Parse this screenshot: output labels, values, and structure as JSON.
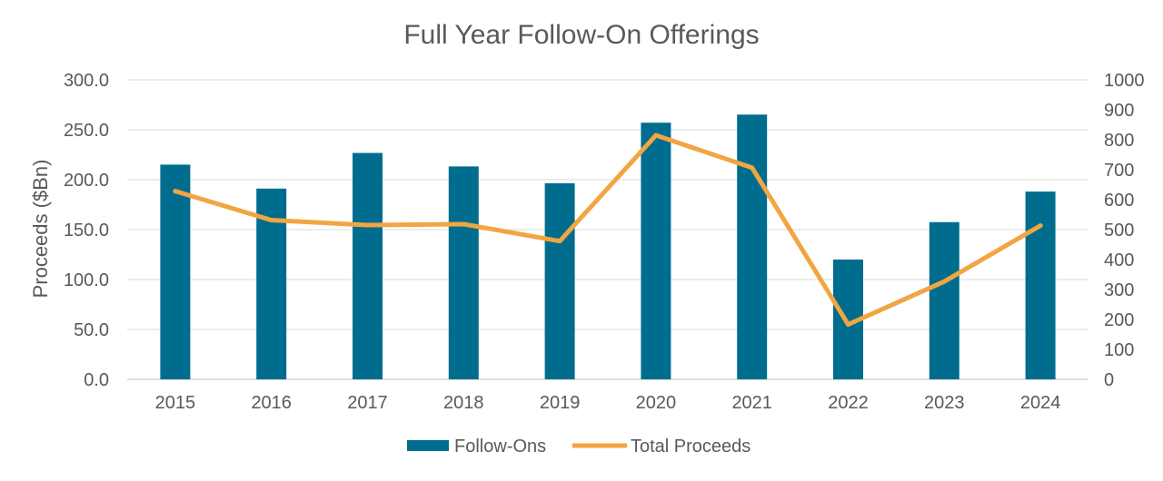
{
  "chart_data": {
    "type": "bar",
    "title": "Full Year Follow-On Offerings",
    "xlabel": "",
    "ylabel": "Proceeds ($Bn)",
    "y2label": "",
    "categories": [
      "2015",
      "2016",
      "2017",
      "2018",
      "2019",
      "2020",
      "2021",
      "2022",
      "2023",
      "2024"
    ],
    "ylim": [
      0,
      300
    ],
    "y2lim": [
      0,
      1000
    ],
    "yticks": [
      "0.0",
      "50.0",
      "100.0",
      "150.0",
      "200.0",
      "250.0",
      "300.0"
    ],
    "y2ticks": [
      "0",
      "100",
      "200",
      "300",
      "400",
      "500",
      "600",
      "700",
      "800",
      "900",
      "1000"
    ],
    "grid": true,
    "legend_position": "bottom",
    "series": [
      {
        "name": "Follow-Ons",
        "type": "bar",
        "axis": "right",
        "color": "#006D8F",
        "values": [
          717,
          637,
          756,
          711,
          655,
          857,
          884,
          400,
          525,
          627
        ]
      },
      {
        "name": "Total Proceeds",
        "type": "line",
        "axis": "left",
        "color": "#F2A541",
        "values": [
          188.5,
          159.5,
          154.5,
          155.5,
          138.5,
          244.5,
          212.0,
          55.0,
          98.0,
          154.0
        ]
      }
    ]
  }
}
